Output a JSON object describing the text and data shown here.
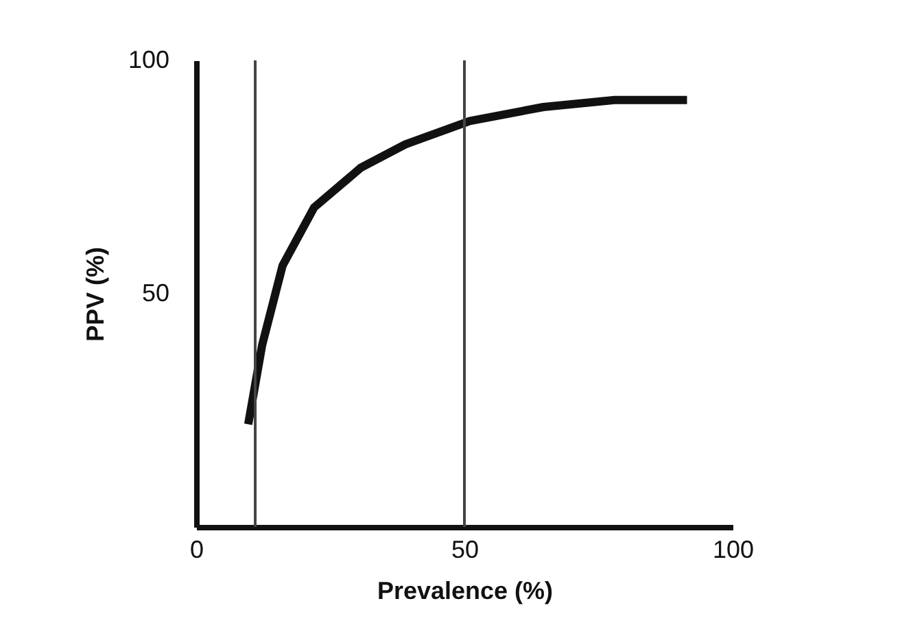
{
  "chart_data": {
    "type": "line",
    "xlabel": "Prevalence (%)",
    "ylabel": "PPV (%)",
    "x": [
      9.7,
      12.3,
      16.1,
      22,
      30.7,
      39,
      51,
      64.7,
      78,
      91.5
    ],
    "series": [
      {
        "color": "#111111",
        "values": [
          22,
          39,
          56,
          68.5,
          77,
          82,
          87,
          90,
          91.5,
          91.5
        ]
      }
    ],
    "xlim": [
      0,
      100
    ],
    "ylim": [
      0,
      100
    ],
    "xticks": [
      0,
      50,
      100
    ],
    "yticks": [
      50,
      100
    ],
    "ref_lines": [
      {
        "axis": "x",
        "value": 11,
        "color": "#444444"
      },
      {
        "axis": "x",
        "value": 50,
        "color": "#444444"
      }
    ],
    "grid": false,
    "line_style": "solid"
  }
}
